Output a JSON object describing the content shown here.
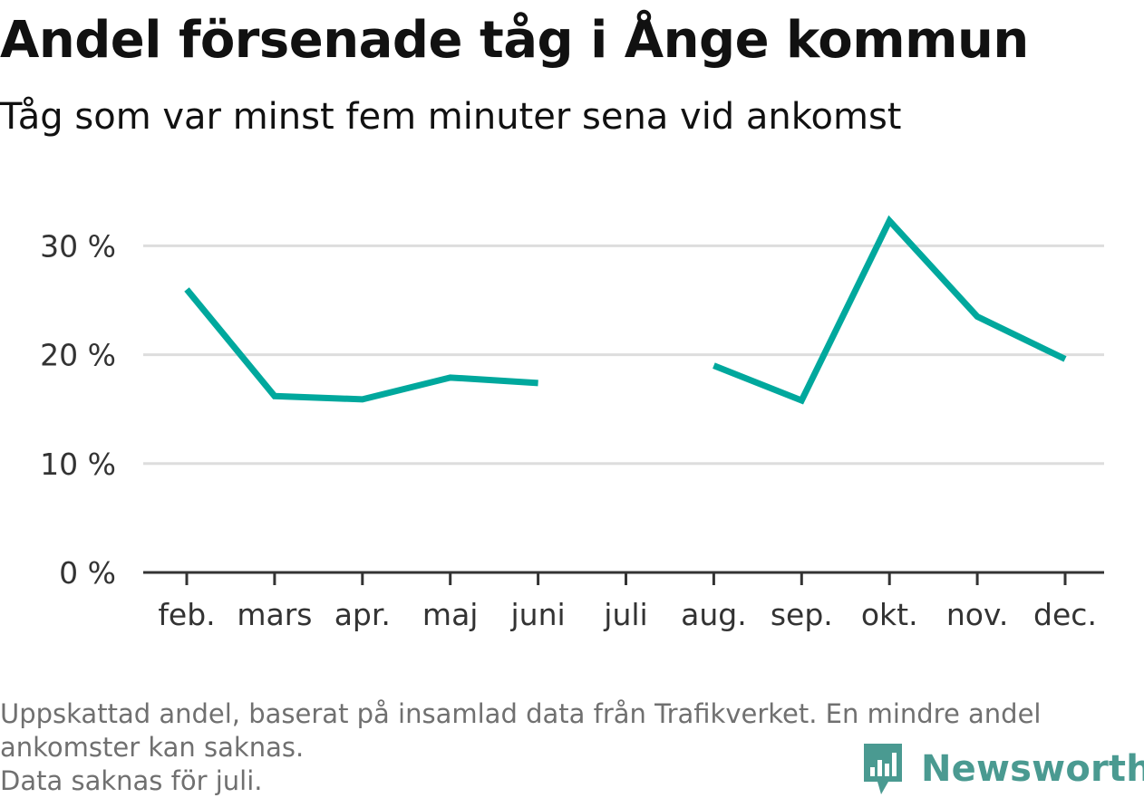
{
  "chart_data": {
    "type": "line",
    "title": "Andel försenade tåg i Ånge kommun",
    "subtitle": "Tåg som var minst fem minuter sena vid ankomst",
    "categories": [
      "feb.",
      "mars",
      "apr.",
      "maj",
      "juni",
      "juli",
      "aug.",
      "sep.",
      "okt.",
      "nov.",
      "dec."
    ],
    "series": [
      {
        "values": [
          26.0,
          16.2,
          15.9,
          17.9,
          17.4,
          null,
          19.0,
          15.8,
          32.3,
          23.5,
          19.6
        ],
        "color": "#00a89d"
      }
    ],
    "ylim": [
      0,
      35
    ],
    "yticks": [
      0,
      10,
      20,
      30
    ],
    "ytick_labels": [
      "0 %",
      "10 %",
      "20 %",
      "30 %"
    ],
    "grid": true,
    "notes": [
      "Uppskattad andel, baserat på insamlad data från Trafikverket. En mindre andel",
      "ankomster kan saknas.",
      "Data saknas för juli."
    ],
    "brand": "Newsworthy",
    "colors": {
      "line": "#00a89d",
      "grid": "#dddddd",
      "axis": "#333333",
      "brand": "#4a9a91"
    }
  }
}
